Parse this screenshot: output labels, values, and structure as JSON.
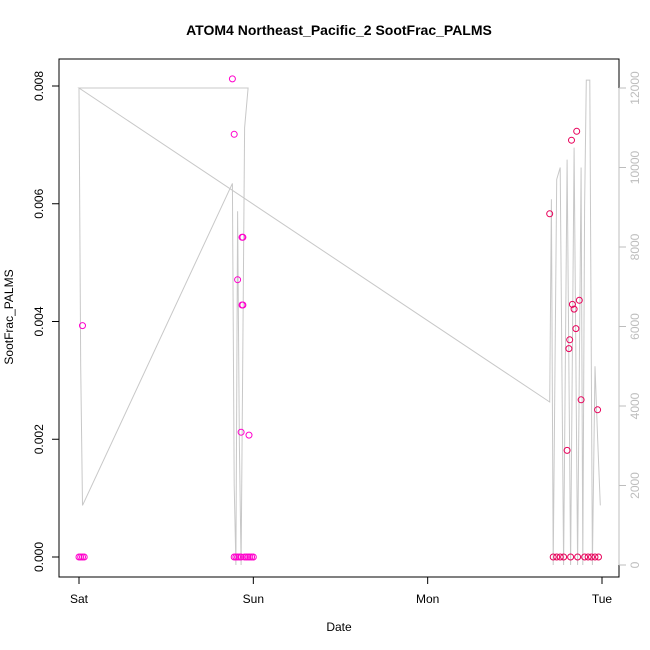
{
  "chart_data": {
    "type": "scatter",
    "title": "ATOM4 Northeast_Pacific_2 SootFrac_PALMS",
    "xlabel": "Date",
    "ylabel": "SootFrac_PALMS",
    "x_ticks": [
      {
        "label": "Sat",
        "value": 0
      },
      {
        "label": "Sun",
        "value": 1
      },
      {
        "label": "Mon",
        "value": 2
      },
      {
        "label": "Tue",
        "value": 3
      }
    ],
    "xlim": [
      0,
      3
    ],
    "ylim": [
      0,
      0.008
    ],
    "y_ticks": [
      "0.000",
      "0.002",
      "0.004",
      "0.006",
      "0.008"
    ],
    "y_tick_values": [
      0,
      0.002,
      0.004,
      0.006,
      0.008
    ],
    "y2lim": [
      0,
      12000
    ],
    "y2_ticks": [
      "0",
      "2000",
      "4000",
      "6000",
      "8000",
      "10000",
      "12000"
    ],
    "y2_tick_values": [
      0,
      2000,
      4000,
      6000,
      8000,
      10000,
      12000
    ],
    "grid": false,
    "colors": {
      "points_a": "#ff00cc",
      "points_b": "#e8005a",
      "altitude_line": "#c8c8c8",
      "axes": "#000000",
      "right_axis": "#bdbdbd"
    },
    "series": [
      {
        "role": "points-early",
        "points": [
          [
            0.0,
            0
          ],
          [
            0.01,
            0
          ],
          [
            0.02,
            0
          ],
          [
            0.03,
            0
          ],
          [
            0.02,
            0.00393
          ],
          [
            0.88,
            0.00812
          ],
          [
            0.89,
            0.00718
          ],
          [
            0.89,
            0
          ],
          [
            0.9,
            0
          ],
          [
            0.91,
            0
          ],
          [
            0.91,
            0.00471
          ],
          [
            0.92,
            0
          ],
          [
            0.93,
            0
          ],
          [
            0.93,
            0.00212
          ],
          [
            0.935,
            0.00543
          ],
          [
            0.94,
            0.00543
          ],
          [
            0.935,
            0.00428
          ],
          [
            0.94,
            0.00428
          ],
          [
            0.95,
            0
          ],
          [
            0.96,
            0
          ],
          [
            0.97,
            0
          ],
          [
            0.975,
            0.00207
          ],
          [
            0.98,
            0
          ],
          [
            0.99,
            0
          ],
          [
            1.0,
            0
          ]
        ]
      },
      {
        "role": "points-late",
        "points": [
          [
            2.7,
            0.00583
          ],
          [
            2.72,
            0
          ],
          [
            2.74,
            0
          ],
          [
            2.76,
            0
          ],
          [
            2.78,
            0
          ],
          [
            2.8,
            0.00181
          ],
          [
            2.81,
            0.00354
          ],
          [
            2.815,
            0.00369
          ],
          [
            2.82,
            0
          ],
          [
            2.825,
            0.00708
          ],
          [
            2.83,
            0.00429
          ],
          [
            2.84,
            0.00421
          ],
          [
            2.85,
            0.00388
          ],
          [
            2.855,
            0.00723
          ],
          [
            2.86,
            0
          ],
          [
            2.87,
            0.00436
          ],
          [
            2.88,
            0.00267
          ],
          [
            2.9,
            0
          ],
          [
            2.92,
            0
          ],
          [
            2.94,
            0
          ],
          [
            2.96,
            0
          ],
          [
            2.975,
            0.0025
          ],
          [
            2.98,
            0
          ]
        ]
      },
      {
        "role": "altitude-line",
        "axis": "right",
        "points": [
          [
            0.0,
            12000
          ],
          [
            0.01,
            5000
          ],
          [
            0.02,
            1500
          ],
          [
            0.88,
            9600
          ],
          [
            0.89,
            2000
          ],
          [
            0.9,
            0
          ],
          [
            0.91,
            8900
          ],
          [
            0.92,
            3000
          ],
          [
            0.93,
            0
          ],
          [
            0.95,
            11000
          ],
          [
            0.97,
            12000
          ],
          [
            0.96,
            12000
          ],
          [
            0.0,
            12000
          ],
          [
            2.7,
            4100
          ],
          [
            2.71,
            9200
          ],
          [
            2.72,
            0
          ],
          [
            2.74,
            9700
          ],
          [
            2.76,
            10000
          ],
          [
            2.78,
            0
          ],
          [
            2.8,
            10200
          ],
          [
            2.82,
            0
          ],
          [
            2.84,
            10500
          ],
          [
            2.86,
            0
          ],
          [
            2.88,
            10000
          ],
          [
            2.89,
            0
          ],
          [
            2.9,
            9000
          ],
          [
            2.91,
            12200
          ],
          [
            2.93,
            12200
          ],
          [
            2.945,
            0
          ],
          [
            2.96,
            5000
          ],
          [
            2.975,
            3200
          ],
          [
            2.99,
            1500
          ]
        ]
      }
    ]
  }
}
